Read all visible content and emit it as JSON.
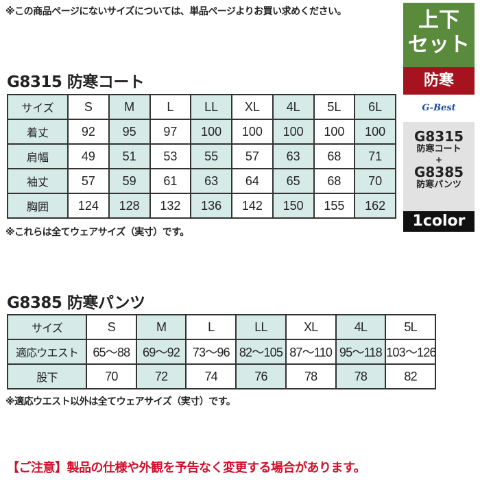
{
  "top_note": "※この商品ページにないサイズについては、単品ページよりお買い求めください。",
  "coat": {
    "title": "G8315 防寒コート",
    "header": [
      "サイズ",
      "S",
      "M",
      "L",
      "LL",
      "XL",
      "4L",
      "5L",
      "6L"
    ],
    "rows": [
      [
        "着丈",
        "92",
        "95",
        "97",
        "100",
        "100",
        "100",
        "100",
        "100"
      ],
      [
        "肩幅",
        "49",
        "51",
        "53",
        "55",
        "57",
        "63",
        "68",
        "71"
      ],
      [
        "袖丈",
        "57",
        "59",
        "61",
        "63",
        "64",
        "65",
        "68",
        "70"
      ],
      [
        "胸囲",
        "124",
        "128",
        "132",
        "136",
        "142",
        "150",
        "155",
        "162"
      ]
    ],
    "note": "※これらは全てウェアサイズ（実寸）です。"
  },
  "pants": {
    "title": "G8385 防寒パンツ",
    "header": [
      "サイズ",
      "S",
      "M",
      "L",
      "LL",
      "XL",
      "4L",
      "5L"
    ],
    "rows": [
      [
        "適応ウエスト",
        "65〜88",
        "69〜92",
        "73〜96",
        "82〜105",
        "87〜110",
        "95〜118",
        "103〜126"
      ],
      [
        "股下",
        "70",
        "72",
        "74",
        "76",
        "78",
        "78",
        "82"
      ]
    ],
    "note": "※適応ウエスト以外は全てウェアサイズ（実寸）です。"
  },
  "caution": "【ご注意】製品の仕様や外観を予告なく変更する場合があります。",
  "side": {
    "set_line1": "上下",
    "set_line2": "セット",
    "category": "防寒",
    "brand_logo": "G-Best",
    "item1_code": "G8315",
    "item1_name": "防寒コート",
    "plus": "+",
    "item2_code": "G8385",
    "item2_name": "防寒パンツ",
    "colors": "1color"
  },
  "colors": {
    "shade": "#d6ebe8",
    "green": "#5a8a3c",
    "red": "#a5141e",
    "caution": "#d0102a"
  }
}
